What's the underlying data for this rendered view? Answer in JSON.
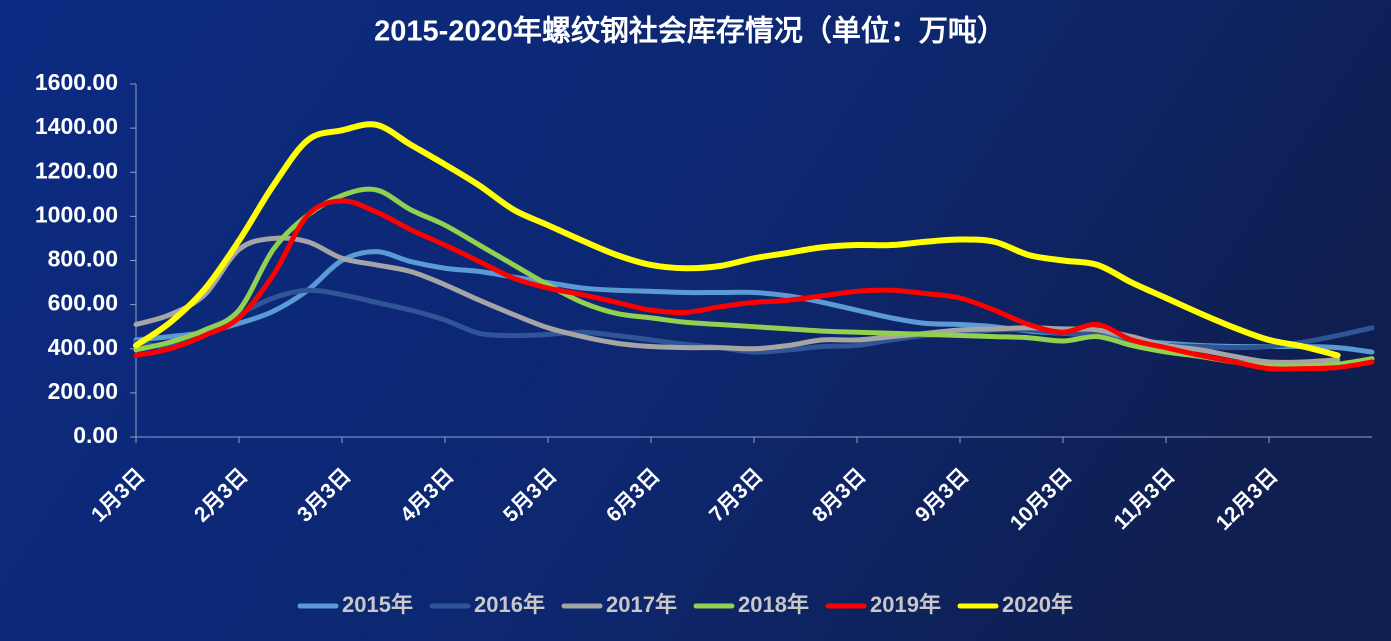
{
  "chart_data": {
    "type": "line",
    "title": "2015-2020年螺纹钢社会库存情况（单位：万吨）",
    "categories": [
      "1月3日",
      null,
      null,
      "2月3日",
      null,
      null,
      "3月3日",
      null,
      null,
      "4月3日",
      null,
      null,
      "5月3日",
      null,
      null,
      "6月3日",
      null,
      null,
      "7月3日",
      null,
      null,
      "8月3日",
      null,
      null,
      "9月3日",
      null,
      null,
      "10月3日",
      null,
      null,
      "11月3日",
      null,
      null,
      "12月3日",
      null,
      null,
      null
    ],
    "ylim": [
      0,
      1600
    ],
    "yticks": [
      {
        "value": 0,
        "label": "0.00"
      },
      {
        "value": 200,
        "label": "200.00"
      },
      {
        "value": 400,
        "label": "400.00"
      },
      {
        "value": 600,
        "label": "600.00"
      },
      {
        "value": 800,
        "label": "800.00"
      },
      {
        "value": 1000,
        "label": "1000.00"
      },
      {
        "value": 1200,
        "label": "1200.00"
      },
      {
        "value": 1400,
        "label": "1400.00"
      },
      {
        "value": 1600,
        "label": "1600.00"
      }
    ],
    "grid": false,
    "legend": "bottom",
    "series": [
      {
        "name": "2015年",
        "color": "#5b9bd5",
        "values": [
          440,
          455,
          475,
          515,
          570,
          665,
          800,
          840,
          795,
          765,
          750,
          725,
          700,
          675,
          665,
          660,
          655,
          655,
          655,
          640,
          610,
          575,
          540,
          515,
          510,
          500,
          480,
          470,
          460,
          440,
          425,
          415,
          410,
          410,
          410,
          405,
          385
        ]
      },
      {
        "name": "2016年",
        "color": "#2f5597",
        "values": [
          430,
          410,
          460,
          555,
          630,
          665,
          645,
          610,
          575,
          530,
          470,
          460,
          465,
          475,
          460,
          440,
          420,
          405,
          385,
          395,
          410,
          415,
          440,
          460,
          470,
          485,
          485,
          470,
          460,
          425,
          415,
          410,
          405,
          410,
          430,
          460,
          495
        ]
      },
      {
        "name": "2017年",
        "color": "#a5a5a5",
        "values": [
          510,
          555,
          645,
          850,
          900,
          885,
          810,
          780,
          750,
          690,
          620,
          555,
          495,
          455,
          425,
          410,
          405,
          405,
          400,
          415,
          440,
          440,
          455,
          470,
          485,
          490,
          495,
          490,
          485,
          455,
          415,
          395,
          365,
          340,
          340,
          350,
          null
        ]
      },
      {
        "name": "2018年",
        "color": "#92d050",
        "values": [
          395,
          430,
          485,
          575,
          850,
          1005,
          1095,
          1120,
          1030,
          960,
          870,
          780,
          690,
          610,
          560,
          540,
          520,
          510,
          500,
          490,
          480,
          475,
          470,
          465,
          460,
          455,
          450,
          435,
          455,
          415,
          385,
          365,
          340,
          320,
          320,
          330,
          355
        ]
      },
      {
        "name": "2019年",
        "color": "#ff0000",
        "values": [
          370,
          400,
          460,
          540,
          735,
          1005,
          1070,
          1020,
          940,
          870,
          795,
          720,
          675,
          645,
          610,
          575,
          565,
          590,
          610,
          620,
          640,
          660,
          665,
          650,
          630,
          575,
          510,
          475,
          510,
          440,
          405,
          370,
          340,
          310,
          310,
          315,
          340
        ]
      },
      {
        "name": "2020年",
        "color": "#ffff00",
        "values": [
          415,
          520,
          670,
          890,
          1140,
          1345,
          1390,
          1415,
          1325,
          1235,
          1140,
          1030,
          960,
          890,
          825,
          780,
          765,
          775,
          810,
          835,
          860,
          870,
          870,
          885,
          895,
          885,
          825,
          800,
          780,
          700,
          630,
          560,
          495,
          440,
          410,
          370,
          null
        ]
      }
    ]
  }
}
